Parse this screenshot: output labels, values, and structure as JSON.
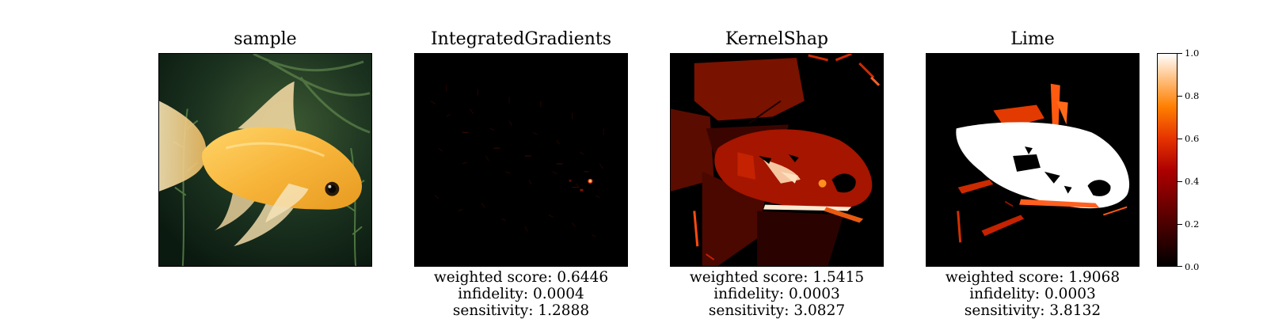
{
  "chart_data": {
    "type": "heatmap",
    "panels": [
      {
        "title": "sample"
      },
      {
        "title": "IntegratedGradients",
        "metrics": [
          {
            "label": "weighted score",
            "value": "0.6446"
          },
          {
            "label": "infidelity",
            "value": "0.0004"
          },
          {
            "label": "sensitivity",
            "value": "1.2888"
          }
        ]
      },
      {
        "title": "KernelShap",
        "metrics": [
          {
            "label": "weighted score",
            "value": "1.5415"
          },
          {
            "label": "infidelity",
            "value": "0.0003"
          },
          {
            "label": "sensitivity",
            "value": "3.0827"
          }
        ]
      },
      {
        "title": "Lime",
        "metrics": [
          {
            "label": "weighted score",
            "value": "1.9068"
          },
          {
            "label": "infidelity",
            "value": "0.0003"
          },
          {
            "label": "sensitivity",
            "value": "3.8132"
          }
        ]
      }
    ],
    "colorbar": {
      "colormap": "gist_heat",
      "range": [
        0.0,
        1.0
      ],
      "ticks": [
        "0.0",
        "0.2",
        "0.4",
        "0.6",
        "0.8",
        "1.0"
      ]
    }
  }
}
